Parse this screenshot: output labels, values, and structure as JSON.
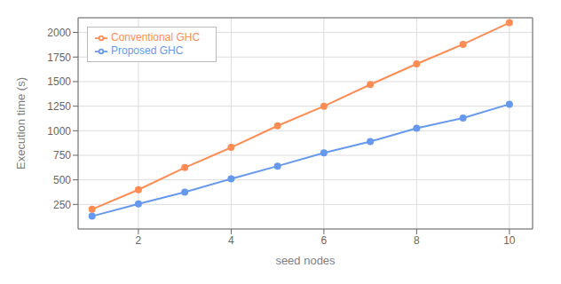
{
  "chart_data": {
    "type": "line",
    "xlabel": "seed nodes",
    "ylabel": "Execution time (s)",
    "x": [
      1,
      2,
      3,
      4,
      5,
      6,
      7,
      8,
      9,
      10
    ],
    "series": [
      {
        "name": "Conventional GHC",
        "color": "#FF8C55",
        "values": [
          200,
          400,
          625,
          830,
          1050,
          1250,
          1470,
          1680,
          1880,
          2100
        ]
      },
      {
        "name": "Proposed GHC",
        "color": "#6699EE",
        "values": [
          130,
          255,
          375,
          510,
          640,
          775,
          890,
          1025,
          1130,
          1270
        ]
      }
    ],
    "xlim": [
      0.7,
      10.5
    ],
    "ylim": [
      0,
      2150
    ],
    "xticks": [
      2,
      4,
      6,
      8,
      10
    ],
    "yticks": [
      250,
      500,
      750,
      1000,
      1250,
      1500,
      1750,
      2000
    ],
    "grid": true,
    "legend": "upper left",
    "marker": "circle"
  }
}
